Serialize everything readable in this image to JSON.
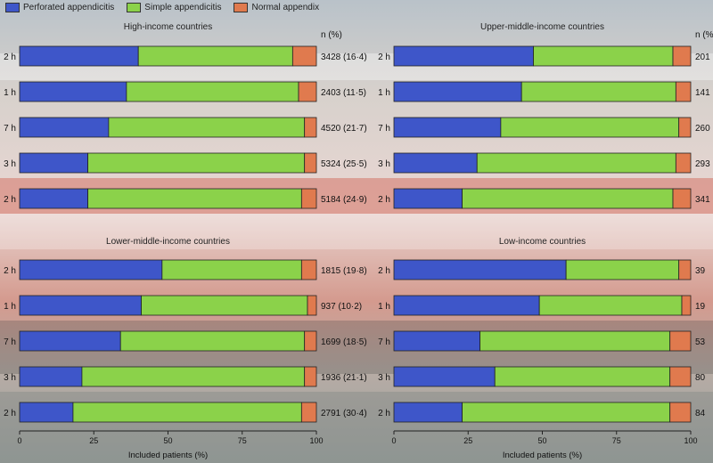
{
  "legend": {
    "items": [
      {
        "label": "Perforated appendicitis",
        "color": "#3e56c9"
      },
      {
        "label": "Simple appendicitis",
        "color": "#8bd24a"
      },
      {
        "label": "Normal appendix",
        "color": "#e07a4e"
      }
    ]
  },
  "n_header": "n (%)",
  "row_labels": [
    "2 h",
    "1 h",
    "7 h",
    "3 h",
    "2 h"
  ],
  "colors": {
    "perforated": "#3e56c9",
    "simple": "#8bd24a",
    "normal": "#e07a4e"
  },
  "chart_data": [
    {
      "type": "bar",
      "title": "High-income countries",
      "xlabel": "Included patients (%)",
      "xlim": [
        0,
        100
      ],
      "xticks": [
        0,
        25,
        50,
        75,
        100
      ],
      "rows": [
        {
          "perforated": 40,
          "simple": 52,
          "normal": 8,
          "n": "3428 (16·4)"
        },
        {
          "perforated": 36,
          "simple": 58,
          "normal": 6,
          "n": "2403 (11·5)"
        },
        {
          "perforated": 30,
          "simple": 66,
          "normal": 4,
          "n": "4520 (21·7)"
        },
        {
          "perforated": 23,
          "simple": 73,
          "normal": 4,
          "n": "5324 (25·5)"
        },
        {
          "perforated": 23,
          "simple": 72,
          "normal": 5,
          "n": "5184 (24·9)"
        }
      ]
    },
    {
      "type": "bar",
      "title": "Upper-middle-income countries",
      "xlabel": "",
      "xlim": [
        0,
        100
      ],
      "xticks": [],
      "rows": [
        {
          "perforated": 47,
          "simple": 47,
          "normal": 6,
          "n": "201"
        },
        {
          "perforated": 43,
          "simple": 52,
          "normal": 5,
          "n": "141"
        },
        {
          "perforated": 36,
          "simple": 60,
          "normal": 4,
          "n": "260"
        },
        {
          "perforated": 28,
          "simple": 67,
          "normal": 5,
          "n": "293"
        },
        {
          "perforated": 23,
          "simple": 71,
          "normal": 6,
          "n": "341"
        }
      ]
    },
    {
      "type": "bar",
      "title": "Lower-middle-income countries",
      "xlabel": "Included patients (%)",
      "xlim": [
        0,
        100
      ],
      "xticks": [
        0,
        25,
        50,
        75,
        100
      ],
      "rows": [
        {
          "perforated": 48,
          "simple": 47,
          "normal": 5,
          "n": "1815 (19·8)"
        },
        {
          "perforated": 41,
          "simple": 56,
          "normal": 3,
          "n": "937 (10·2)"
        },
        {
          "perforated": 34,
          "simple": 62,
          "normal": 4,
          "n": "1699 (18·5)"
        },
        {
          "perforated": 21,
          "simple": 75,
          "normal": 4,
          "n": "1936 (21·1)"
        },
        {
          "perforated": 18,
          "simple": 77,
          "normal": 5,
          "n": "2791 (30·4)"
        }
      ]
    },
    {
      "type": "bar",
      "title": "Low-income countries",
      "xlabel": "Included patients (%)",
      "xlim": [
        0,
        100
      ],
      "xticks": [
        0,
        25,
        50,
        75,
        100
      ],
      "rows": [
        {
          "perforated": 58,
          "simple": 38,
          "normal": 4,
          "n": "39"
        },
        {
          "perforated": 49,
          "simple": 48,
          "normal": 3,
          "n": "19"
        },
        {
          "perforated": 29,
          "simple": 64,
          "normal": 7,
          "n": "53"
        },
        {
          "perforated": 34,
          "simple": 59,
          "normal": 7,
          "n": "80"
        },
        {
          "perforated": 23,
          "simple": 70,
          "normal": 7,
          "n": "84"
        }
      ]
    }
  ]
}
